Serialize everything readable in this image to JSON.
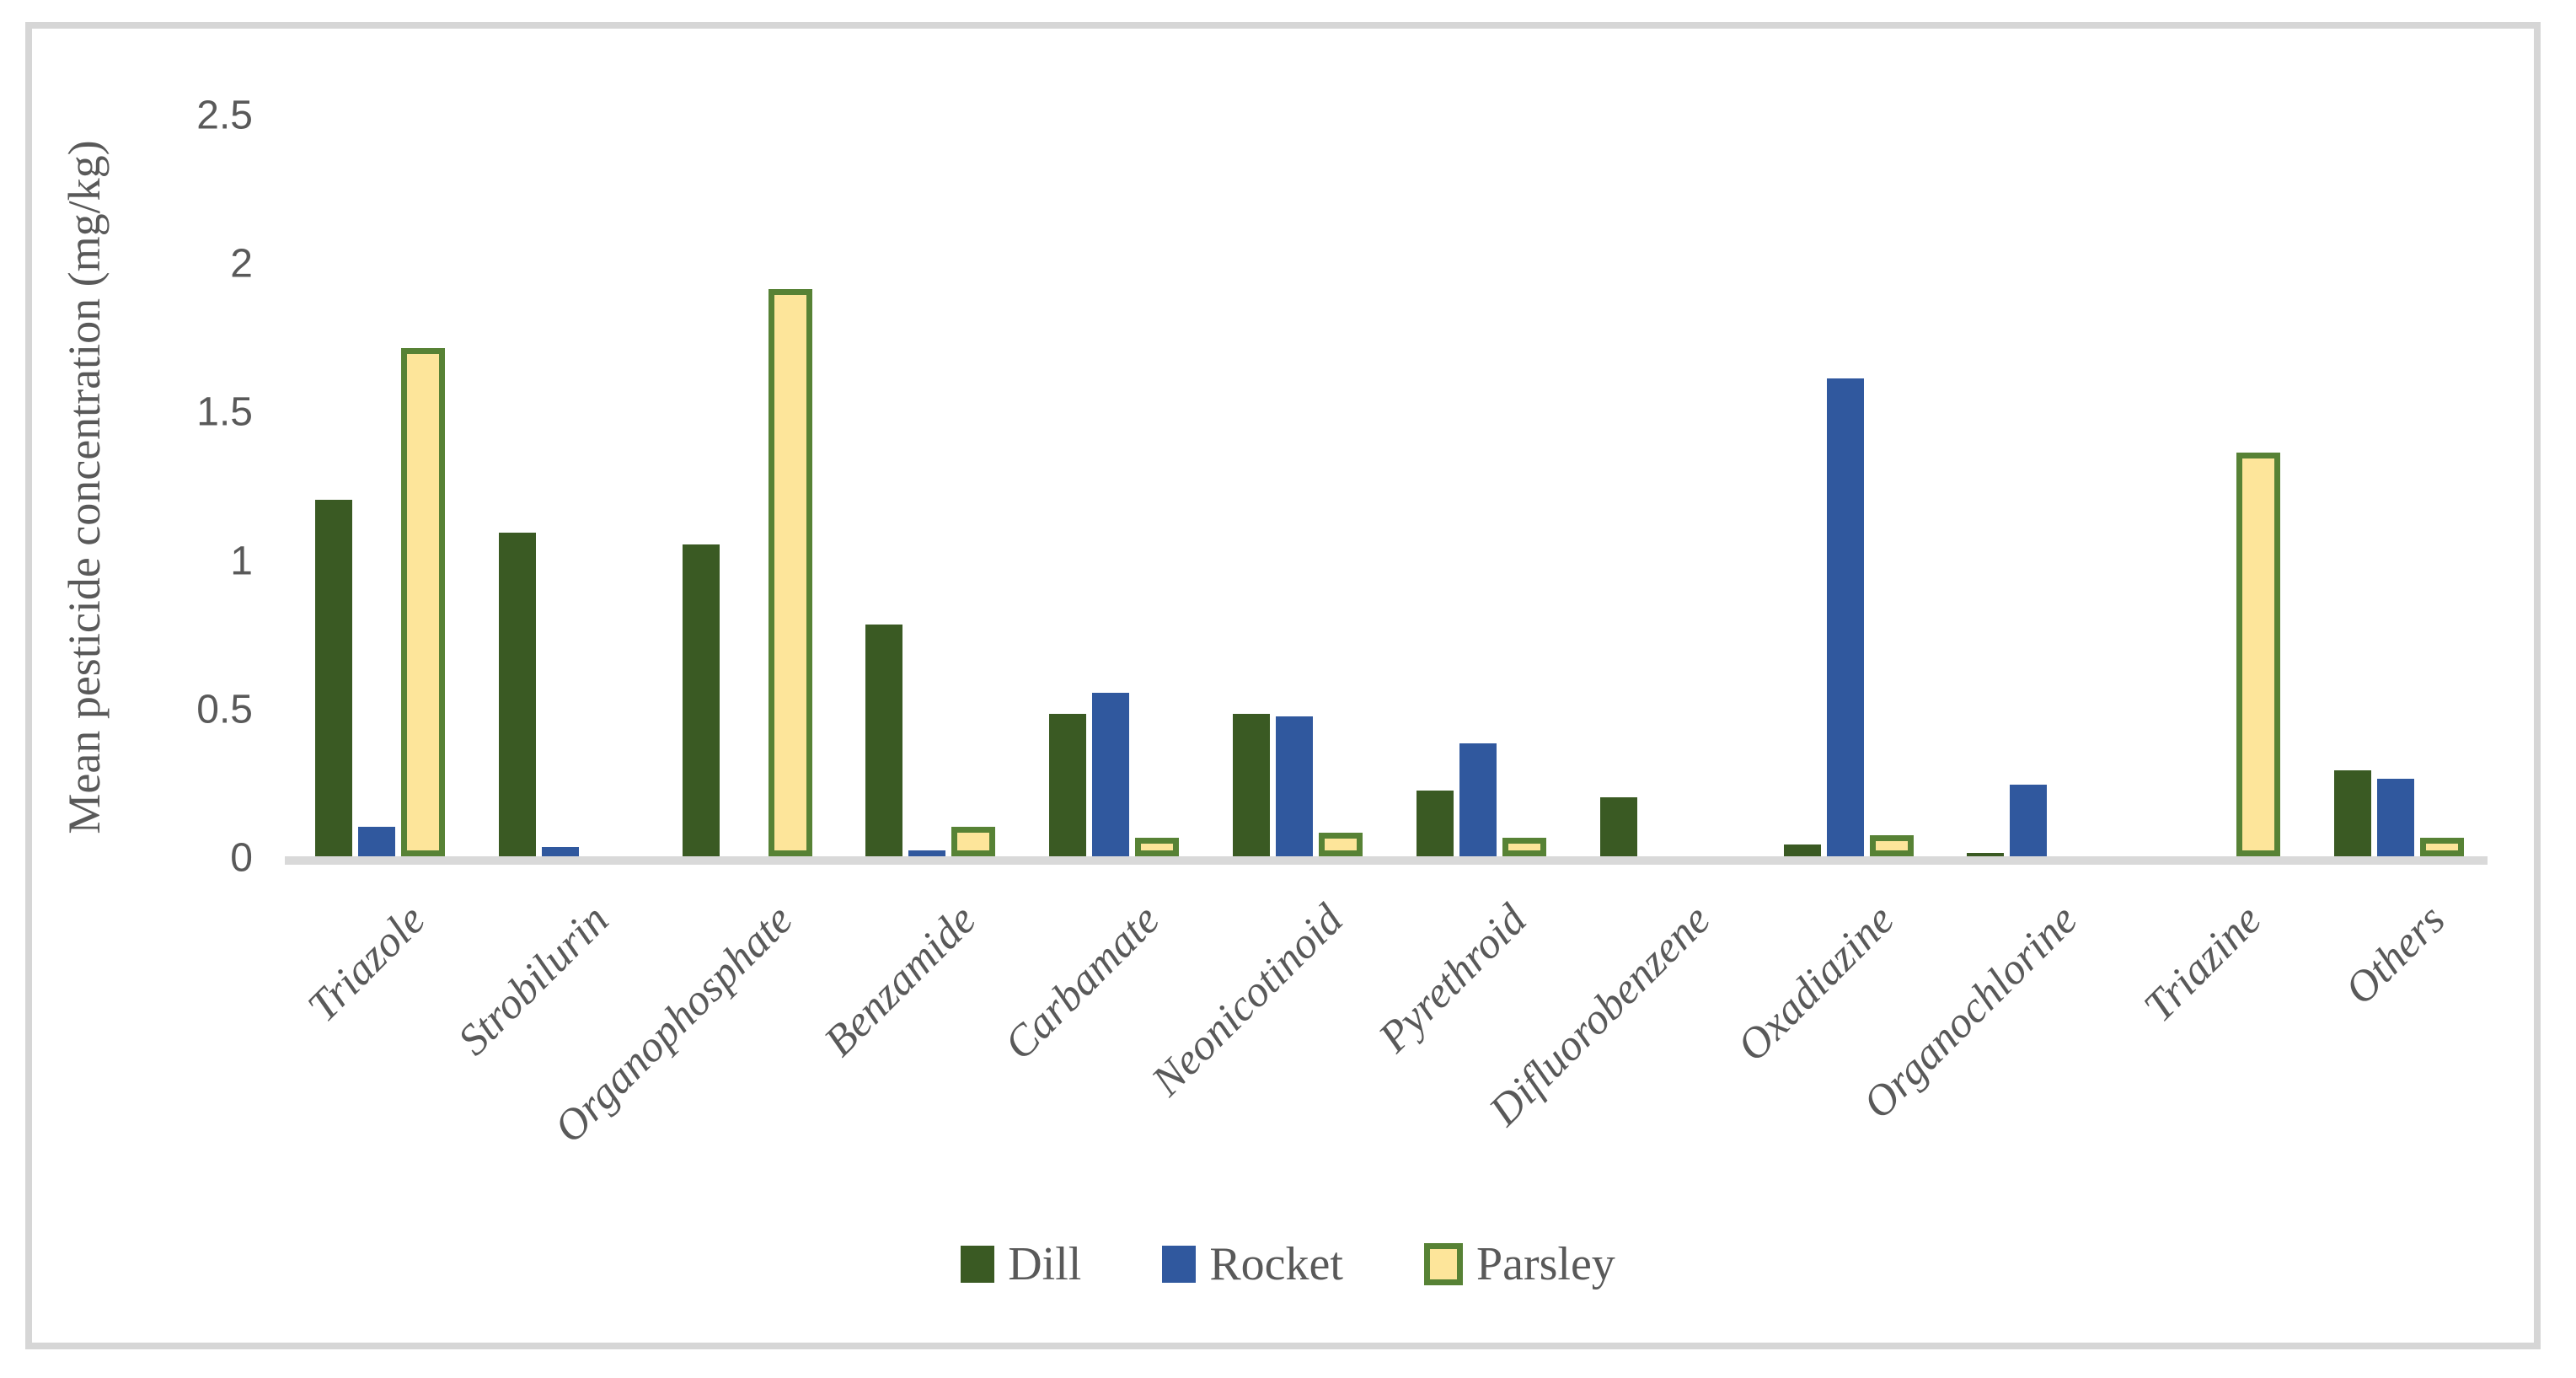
{
  "chart_data": {
    "type": "bar",
    "title": "",
    "xlabel": "",
    "ylabel": "Mean pesticide concentration (mg/kg)",
    "ylim": [
      0,
      2.5
    ],
    "yticks": [
      0,
      0.5,
      1,
      1.5,
      2,
      2.5
    ],
    "ytick_labels": [
      "0",
      "0.5",
      "1",
      "1.5",
      "2",
      "2.5"
    ],
    "grid": false,
    "legend_position": "bottom",
    "categories": [
      "Triazole",
      "Strobilurin",
      "Organophosphate",
      "Benzamide",
      "Carbamate",
      "Neonicotinoid",
      "Pyrethroid",
      "Difluorobenzene",
      "Oxadiazine",
      "Organochlorine",
      "Triazine",
      "Others"
    ],
    "series": [
      {
        "name": "Dill",
        "color": "#3a5a23",
        "values": [
          1.2,
          1.09,
          1.05,
          0.78,
          0.48,
          0.48,
          0.22,
          0.2,
          0.04,
          0.01,
          0,
          0.29
        ]
      },
      {
        "name": "Rocket",
        "color": "#30589e",
        "values": [
          0.1,
          0.03,
          0,
          0.02,
          0.55,
          0.47,
          0.38,
          0,
          1.61,
          0.24,
          0,
          0.26
        ]
      },
      {
        "name": "Parsley",
        "color": "#fde59a",
        "border_color": "#578235",
        "values": [
          1.71,
          0,
          1.91,
          0.1,
          0.04,
          0.08,
          0.03,
          0,
          0.07,
          0,
          1.36,
          0.04
        ]
      }
    ]
  },
  "legend": {
    "items": [
      {
        "label": "Dill"
      },
      {
        "label": "Rocket"
      },
      {
        "label": "Parsley"
      }
    ]
  },
  "colors": {
    "axis_line": "#d9d9d9",
    "frame_border": "#d6d6d6",
    "text": "#595959",
    "background": "#ffffff"
  }
}
